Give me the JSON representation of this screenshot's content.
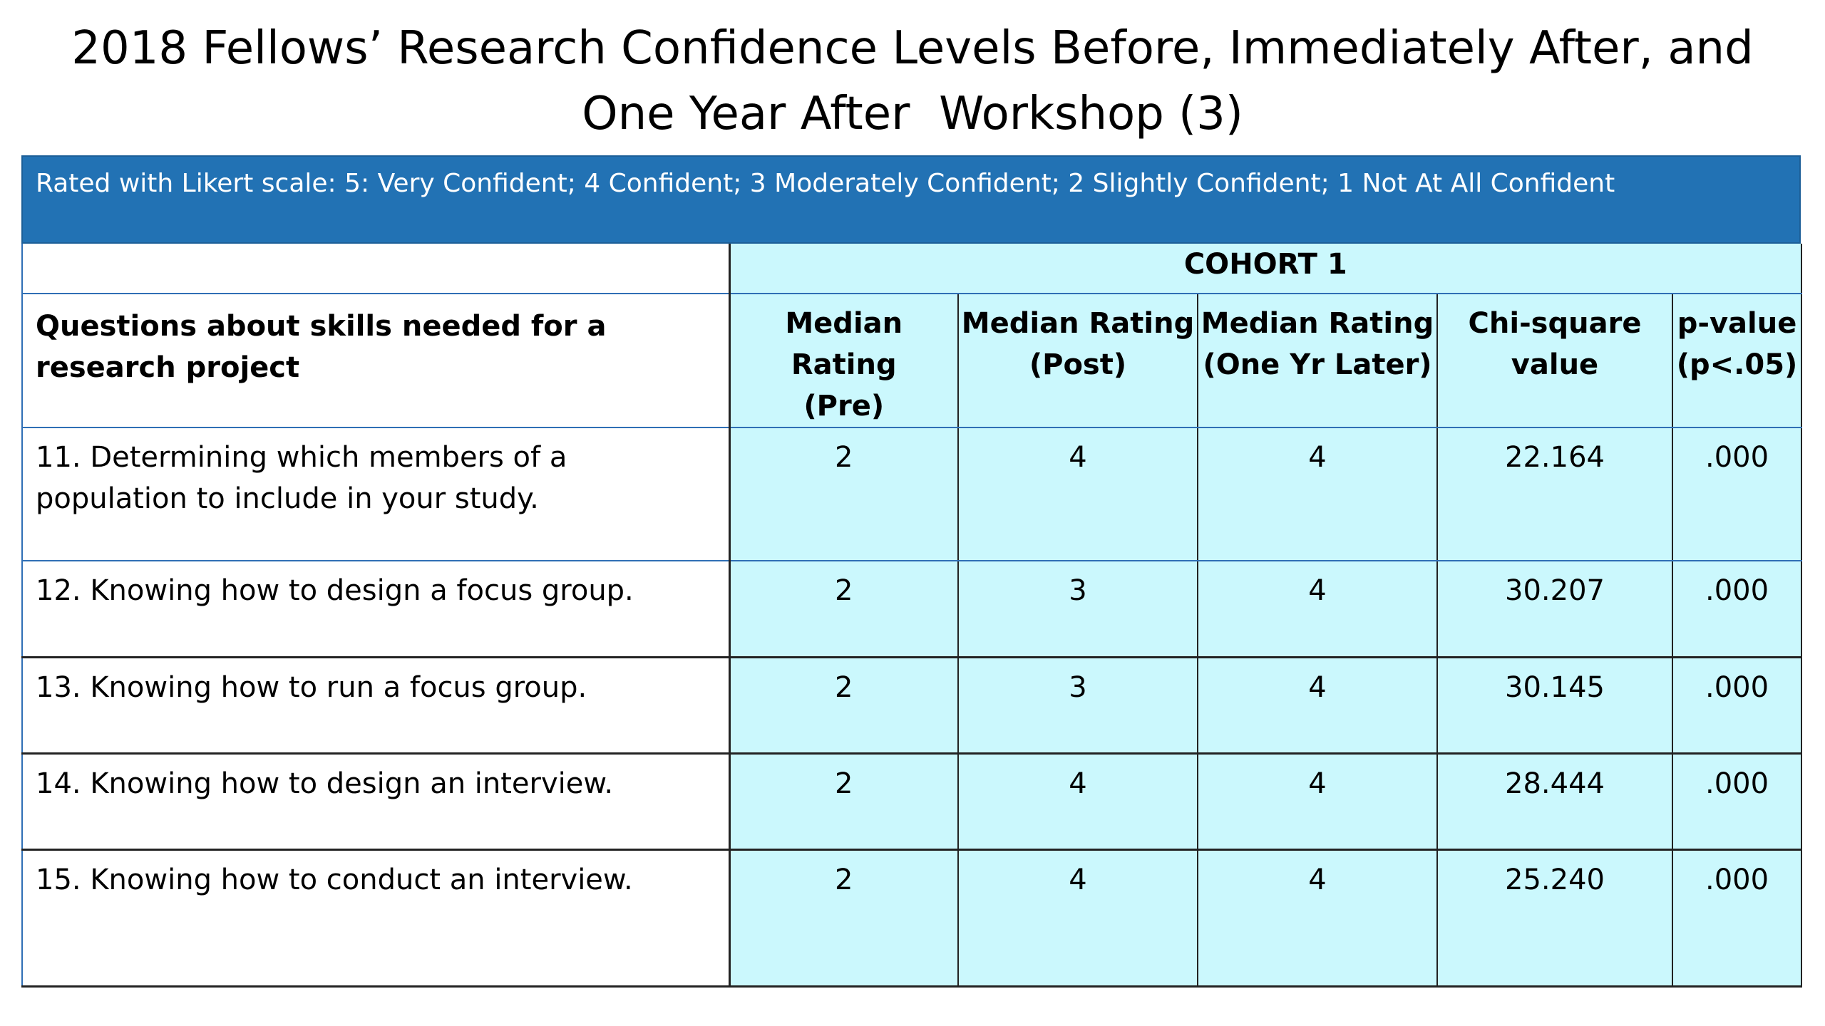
{
  "title": {
    "line1": "2018 Fellows’ Research Confidence Levels Before, Immediately After, and",
    "line2": "One Year After  Workshop (3)"
  },
  "banner": {
    "text": "Rated with Likert scale: 5: Very Confident; 4 Confident; 3 Moderately Confident; 2 Slightly Confident; 1 Not At All Confident"
  },
  "table": {
    "cohort": "COHORT 1",
    "question_header": "Questions about skills needed for a research project",
    "columns": [
      {
        "line1": "Median Rating",
        "line2": "(Pre)"
      },
      {
        "line1": "Median Rating",
        "line2": "(Post)"
      },
      {
        "line1": "Median Rating",
        "line2": "(One Yr Later)"
      },
      {
        "line1": "Chi-square",
        "line2": "value"
      },
      {
        "line1": "p-value",
        "line2": "(p<.05)"
      }
    ],
    "rows": [
      {
        "question": "11. Determining which members of a population to include in your study.",
        "pre": "2",
        "post": "4",
        "one_yr": "4",
        "chi": "22.164",
        "p": ".000"
      },
      {
        "question": "12. Knowing how to design a focus group.",
        "pre": "2",
        "post": "3",
        "one_yr": "4",
        "chi": "30.207",
        "p": ".000"
      },
      {
        "question": "13. Knowing how to run a focus group.",
        "pre": "2",
        "post": "3",
        "one_yr": "4",
        "chi": "30.145",
        "p": ".000"
      },
      {
        "question": "14. Knowing how to design an interview.",
        "pre": "2",
        "post": "4",
        "one_yr": "4",
        "chi": "28.444",
        "p": ".000"
      },
      {
        "question": "15. Knowing how to conduct an interview.",
        "pre": "2",
        "post": "4",
        "one_yr": "4",
        "chi": "25.240",
        "p": ".000"
      }
    ]
  },
  "colors": {
    "banner": "#2272b4",
    "cell_fill": "#cbf8fd",
    "grid_blue": "#2f6fb5"
  }
}
